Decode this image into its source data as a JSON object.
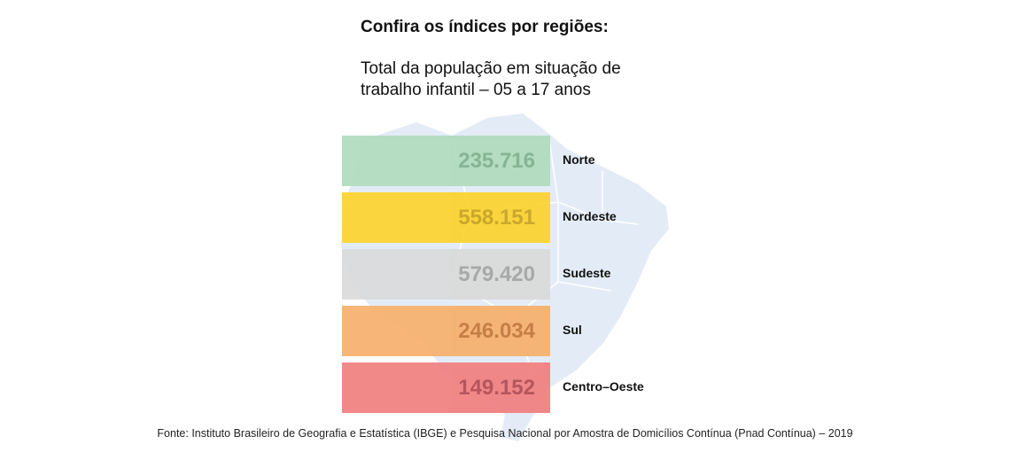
{
  "chart_data": {
    "type": "table",
    "title": "Confira os índices por regiões:",
    "subtitle": "Total da população em situação de trabalho infantil – 05 a 17 anos",
    "categories": [
      "Norte",
      "Nordeste",
      "Sudeste",
      "Sul",
      "Centro–Oeste"
    ],
    "values": [
      235716,
      558151,
      579420,
      246034,
      149152
    ],
    "value_labels": [
      "235.716",
      "558.151",
      "579.420",
      "246.034",
      "149.152"
    ],
    "colors": [
      "#b0dbbd",
      "#fcd32f",
      "#dadada",
      "#f6b06d",
      "#f08080"
    ],
    "text_colors": [
      "#7fb08d",
      "#c9a21e",
      "#a3a3a3",
      "#c4763a",
      "#b24a52"
    ],
    "background": "map of Brazil",
    "source": "Fonte: Instituto Brasileiro de Geografia e Estatística (IBGE) e Pesquisa Nacional por Amostra de Domicílios Contínua (Pnad Contínua) – 2019"
  }
}
